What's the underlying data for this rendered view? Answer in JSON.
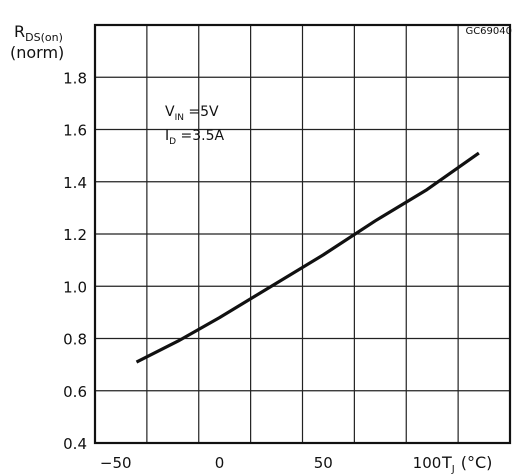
{
  "figure_id": "GC69040",
  "chart_data": {
    "type": "line",
    "y_title": {
      "main": "R",
      "sub": "DS(on)",
      "line2": "(norm)"
    },
    "x_title": {
      "main": "T",
      "sub": "J",
      "unit": "(°C)"
    },
    "annotation": [
      {
        "main": "V",
        "sub": "IN",
        "rest": " =5V"
      },
      {
        "main": "I",
        "sub": "D",
        "rest": " =3.5A"
      }
    ],
    "xlim": [
      -60,
      140
    ],
    "ylim": [
      0.4,
      2.0
    ],
    "x_ticks": [
      {
        "value": -50,
        "label": "−50"
      },
      {
        "value": 0,
        "label": "0"
      },
      {
        "value": 50,
        "label": "50"
      },
      {
        "value": 100,
        "label": "100"
      }
    ],
    "y_ticks": [
      {
        "value": 0.4,
        "label": "0.4"
      },
      {
        "value": 0.6,
        "label": "0.6"
      },
      {
        "value": 0.8,
        "label": "0.8"
      },
      {
        "value": 1.0,
        "label": "1.0"
      },
      {
        "value": 1.2,
        "label": "1.2"
      },
      {
        "value": 1.4,
        "label": "1.4"
      },
      {
        "value": 1.6,
        "label": "1.6"
      },
      {
        "value": 1.8,
        "label": "1.8"
      }
    ],
    "x_grid_step": 25,
    "y_grid_step": 0.2,
    "grid": true,
    "series": [
      {
        "x": [
          -40,
          -20,
          0,
          25,
          50,
          75,
          100,
          125
        ],
        "y": [
          0.71,
          0.79,
          0.88,
          1.0,
          1.12,
          1.25,
          1.37,
          1.51
        ]
      }
    ]
  }
}
